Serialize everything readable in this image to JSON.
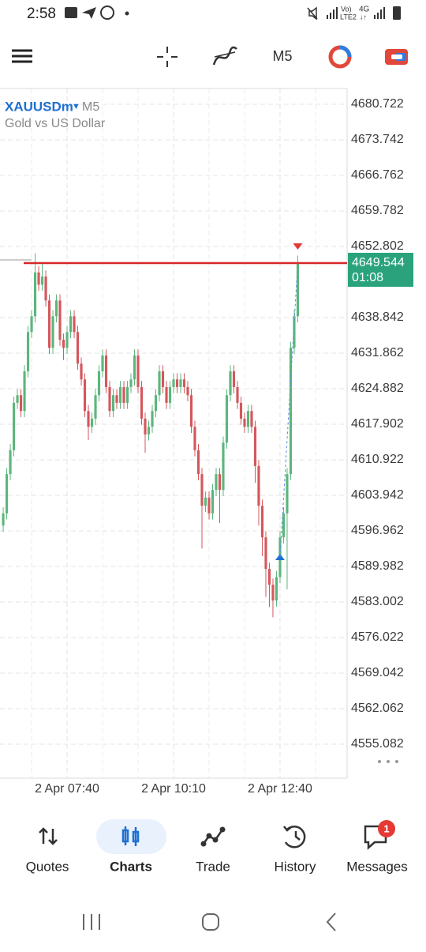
{
  "status_bar": {
    "time": "2:58"
  },
  "toolbar": {
    "timeframe": "M5"
  },
  "chart_data": {
    "type": "candlestick",
    "symbol": "XAUUSDm",
    "timeframe": "M5",
    "subtitle": "Gold vs US Dollar",
    "up_color": "#5cb67c",
    "down_color": "#d4575c",
    "open": [
      4598.0,
      4600.4,
      4608.1,
      4612.8,
      4622.1,
      4623.6,
      4620.5,
      4628.3,
      4636.0,
      4639.1,
      4647.7,
      4645.3,
      4646.9,
      4642.2,
      4632.9,
      4639.1,
      4642.2,
      4634.5,
      4632.9,
      4636.0,
      4639.1,
      4636.0,
      4629.8,
      4626.7,
      4620.5,
      4617.4,
      4619.0,
      4623.6,
      4628.3,
      4631.4,
      4625.2,
      4620.5,
      4623.6,
      4622.1,
      4625.2,
      4622.1,
      4625.2,
      4626.7,
      4631.4,
      4625.2,
      4619.0,
      4615.9,
      4617.4,
      4620.5,
      4623.6,
      4628.3,
      4625.2,
      4622.1,
      4625.2,
      4626.7,
      4625.2,
      4626.7,
      4625.2,
      4623.6,
      4617.4,
      4612.8,
      4608.1,
      4601.9,
      4603.5,
      4600.4,
      4605.0,
      4608.1,
      4605.0,
      4614.3,
      4623.6,
      4628.3,
      4625.2,
      4622.1,
      4619.0,
      4617.4,
      4620.5,
      4617.4,
      4609.7,
      4601.9,
      4595.7,
      4589.5,
      4586.4,
      4583.3,
      4587.9,
      4595.7,
      4600.4,
      4608.1,
      4632.9,
      4639.1
    ],
    "high": [
      4601.6,
      4609.3,
      4614.0,
      4623.3,
      4624.8,
      4624.8,
      4629.5,
      4637.2,
      4640.3,
      4651.5,
      4648.9,
      4649.5,
      4648.1,
      4643.4,
      4640.3,
      4643.4,
      4643.4,
      4635.7,
      4637.2,
      4640.3,
      4640.3,
      4637.2,
      4631.0,
      4627.9,
      4621.7,
      4620.2,
      4624.8,
      4629.5,
      4632.6,
      4632.6,
      4626.4,
      4624.8,
      4624.8,
      4626.4,
      4626.4,
      4626.4,
      4627.9,
      4632.6,
      4632.6,
      4626.4,
      4620.2,
      4618.6,
      4621.7,
      4624.8,
      4629.5,
      4629.5,
      4626.4,
      4626.4,
      4627.9,
      4627.9,
      4627.9,
      4627.9,
      4626.4,
      4624.8,
      4618.6,
      4614.0,
      4609.3,
      4604.7,
      4604.7,
      4606.2,
      4609.3,
      4609.3,
      4615.5,
      4624.8,
      4629.5,
      4629.5,
      4626.4,
      4623.3,
      4620.2,
      4621.7,
      4621.7,
      4618.6,
      4610.9,
      4603.1,
      4596.9,
      4590.7,
      4587.6,
      4589.1,
      4596.9,
      4601.6,
      4609.3,
      4634.1,
      4640.3,
      4651.0
    ],
    "low": [
      4596.8,
      4599.2,
      4606.9,
      4611.6,
      4620.9,
      4619.3,
      4619.3,
      4627.1,
      4634.8,
      4637.9,
      4644.1,
      4644.1,
      4641.0,
      4631.7,
      4631.7,
      4637.9,
      4633.3,
      4630.5,
      4631.7,
      4634.8,
      4634.8,
      4628.6,
      4625.5,
      4619.3,
      4614.8,
      4616.2,
      4617.8,
      4622.4,
      4627.1,
      4624.0,
      4619.3,
      4619.3,
      4620.9,
      4620.9,
      4620.9,
      4620.9,
      4624.0,
      4625.5,
      4624.0,
      4617.8,
      4612.3,
      4614.7,
      4616.2,
      4619.3,
      4622.4,
      4624.0,
      4620.9,
      4620.9,
      4624.0,
      4624.0,
      4624.0,
      4624.0,
      4622.4,
      4616.2,
      4611.6,
      4606.9,
      4593.5,
      4600.7,
      4599.2,
      4599.2,
      4603.8,
      4598.5,
      4603.8,
      4613.1,
      4622.4,
      4624.0,
      4620.9,
      4617.8,
      4616.2,
      4616.2,
      4616.2,
      4606.4,
      4598.0,
      4592.0,
      4584.0,
      4582.0,
      4580.0,
      4582.1,
      4586.7,
      4594.5,
      4585.5,
      4606.9,
      4631.7,
      4637.9
    ],
    "close": [
      4600.4,
      4608.1,
      4612.8,
      4622.1,
      4623.6,
      4620.5,
      4628.3,
      4636.0,
      4639.1,
      4647.7,
      4645.3,
      4646.9,
      4642.2,
      4632.9,
      4639.1,
      4642.2,
      4634.5,
      4632.9,
      4636.0,
      4639.1,
      4636.0,
      4629.8,
      4626.7,
      4620.5,
      4617.4,
      4619.0,
      4623.6,
      4628.3,
      4631.4,
      4625.2,
      4620.5,
      4623.6,
      4622.1,
      4625.2,
      4622.1,
      4625.2,
      4626.7,
      4631.4,
      4625.2,
      4619.0,
      4615.9,
      4617.4,
      4620.5,
      4623.6,
      4628.3,
      4625.2,
      4622.1,
      4625.2,
      4626.7,
      4625.2,
      4626.7,
      4625.2,
      4623.6,
      4617.4,
      4612.8,
      4608.1,
      4601.9,
      4603.5,
      4600.4,
      4605.0,
      4608.1,
      4605.0,
      4614.3,
      4623.6,
      4628.3,
      4625.2,
      4622.1,
      4619.0,
      4617.4,
      4620.5,
      4617.4,
      4609.7,
      4601.9,
      4595.7,
      4589.5,
      4586.4,
      4583.3,
      4587.9,
      4595.7,
      4600.4,
      4608.1,
      4632.9,
      4639.1,
      4649.4
    ],
    "xlim": [
      -0.9,
      96.9
    ],
    "xticks": [
      {
        "value": 18,
        "label": "2 Apr 07:40"
      },
      {
        "value": 48,
        "label": "2 Apr 10:10"
      },
      {
        "value": 78,
        "label": "2 Apr 12:40"
      }
    ],
    "ylim": [
      4548.41,
      4683.82
    ],
    "yticks": [
      4680.722,
      4673.742,
      4666.762,
      4659.782,
      4652.802,
      4638.842,
      4631.862,
      4624.882,
      4617.902,
      4610.922,
      4603.942,
      4596.962,
      4589.982,
      4583.002,
      4576.022,
      4569.042,
      4562.062,
      4555.082
    ],
    "grid": true,
    "current_price": 4649.544,
    "price_color": "#d62728",
    "label_color": "#2aa37d",
    "countdown": "01:08"
  },
  "bottom_nav": {
    "items": [
      {
        "label": "Quotes"
      },
      {
        "label": "Charts"
      },
      {
        "label": "Trade"
      },
      {
        "label": "History"
      },
      {
        "label": "Messages"
      }
    ],
    "active": 1,
    "messages_badge": 1
  }
}
